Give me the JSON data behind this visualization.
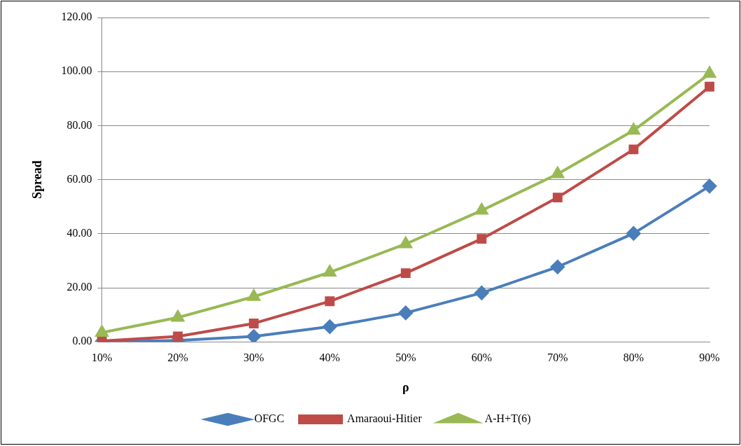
{
  "chart_data": {
    "type": "line",
    "xlabel": "ρ",
    "ylabel": "Spread",
    "categories": [
      "10%",
      "20%",
      "30%",
      "40%",
      "50%",
      "60%",
      "70%",
      "80%",
      "90%"
    ],
    "series": [
      {
        "name": "OFGC",
        "color": "#4a7ebb",
        "marker": "diamond",
        "values": [
          0,
          0.5,
          2.0,
          5.6,
          10.7,
          18.1,
          27.7,
          40.1,
          57.6
        ]
      },
      {
        "name": "Amaraoui-Hitier",
        "color": "#be4b48",
        "marker": "square",
        "values": [
          0.3,
          2.0,
          6.8,
          15.0,
          25.4,
          38.1,
          53.4,
          71.2,
          94.4
        ]
      },
      {
        "name": "A-H+T(6)",
        "color": "#98b954",
        "marker": "triangle",
        "values": [
          3.4,
          9.0,
          16.7,
          25.7,
          36.2,
          48.6,
          62.1,
          78.2,
          99.2
        ]
      }
    ],
    "ylim": [
      0,
      120
    ],
    "yticks": [
      {
        "value": 0,
        "label": "0.00"
      },
      {
        "value": 20,
        "label": "20.00"
      },
      {
        "value": 40,
        "label": "40.00"
      },
      {
        "value": 60,
        "label": "60.00"
      },
      {
        "value": 80,
        "label": "80.00"
      },
      {
        "value": 100,
        "label": "100.00"
      },
      {
        "value": 120,
        "label": "120.00"
      }
    ],
    "grid": "y",
    "legend": "bottom",
    "line_style": "solid"
  }
}
